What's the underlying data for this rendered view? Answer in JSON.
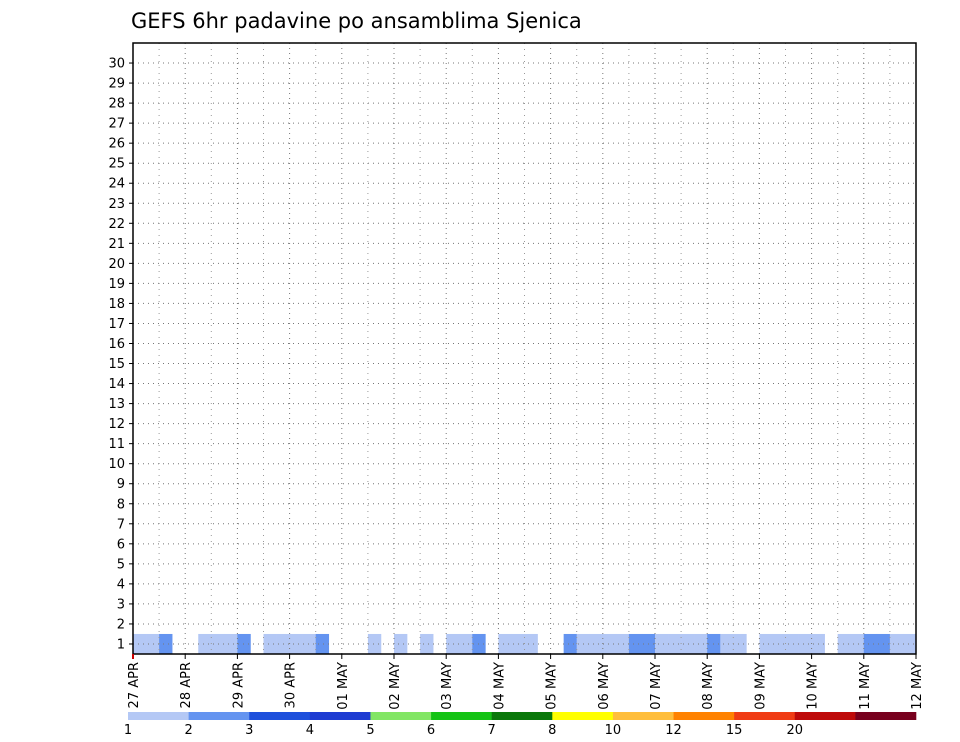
{
  "chart_data": {
    "type": "heatmap",
    "title": "GEFS 6hr padavine po ansamblima Sjenica",
    "y_ticks": [
      "1",
      "2",
      "3",
      "4",
      "5",
      "6",
      "7",
      "8",
      "9",
      "10",
      "11",
      "12",
      "13",
      "14",
      "15",
      "16",
      "17",
      "18",
      "19",
      "20",
      "21",
      "22",
      "23",
      "24",
      "25",
      "26",
      "27",
      "28",
      "29",
      "30"
    ],
    "x_ticks": [
      "27 APR",
      "28 APR",
      "29 APR",
      "30 APR",
      "01 MAY",
      "02 MAY",
      "03 MAY",
      "04 MAY",
      "05 MAY",
      "06 MAY",
      "07 MAY",
      "08 MAY",
      "09 MAY",
      "10 MAY",
      "11 MAY",
      "12 MAY"
    ],
    "legend": {
      "colors": [
        "#b4c8f5",
        "#6494f0",
        "#1e50dc",
        "#1e3cd2",
        "#82e664",
        "#14c314",
        "#0a780a",
        "#ffff00",
        "#ffbe3c",
        "#ff8200",
        "#f03c14",
        "#be0a0a",
        "#78001e"
      ],
      "labels": [
        "1",
        "2",
        "3",
        "4",
        "5",
        "6",
        "7",
        "8",
        "10",
        "12",
        "15",
        "20",
        ""
      ]
    },
    "grid": true,
    "steps_per_day": 4,
    "cells": [
      [
        1,
        0,
        1
      ],
      [
        1,
        1,
        1
      ],
      [
        1,
        2,
        2
      ],
      [
        1,
        5,
        1
      ],
      [
        1,
        6,
        1
      ],
      [
        1,
        7,
        1
      ],
      [
        1,
        8,
        2
      ],
      [
        1,
        10,
        1
      ],
      [
        1,
        11,
        1
      ],
      [
        1,
        12,
        1
      ],
      [
        1,
        13,
        1
      ],
      [
        1,
        14,
        2
      ],
      [
        1,
        18,
        1
      ],
      [
        1,
        20,
        1
      ],
      [
        1,
        22,
        1
      ],
      [
        1,
        24,
        1
      ],
      [
        1,
        25,
        1
      ],
      [
        1,
        26,
        2
      ],
      [
        1,
        28,
        1
      ],
      [
        1,
        29,
        1
      ],
      [
        1,
        30,
        1
      ],
      [
        1,
        33,
        2
      ],
      [
        1,
        34,
        1
      ],
      [
        1,
        35,
        1
      ],
      [
        1,
        36,
        1
      ],
      [
        1,
        37,
        1
      ],
      [
        1,
        38,
        2
      ],
      [
        1,
        39,
        2
      ],
      [
        1,
        40,
        1
      ],
      [
        1,
        41,
        1
      ],
      [
        1,
        42,
        1
      ],
      [
        1,
        43,
        1
      ],
      [
        1,
        44,
        2
      ],
      [
        1,
        45,
        1
      ],
      [
        1,
        46,
        1
      ],
      [
        1,
        48,
        1
      ],
      [
        1,
        49,
        1
      ],
      [
        1,
        50,
        1
      ],
      [
        1,
        51,
        1
      ],
      [
        1,
        52,
        1
      ],
      [
        1,
        54,
        1
      ],
      [
        1,
        55,
        1
      ],
      [
        1,
        56,
        2
      ],
      [
        1,
        57,
        2
      ],
      [
        1,
        58,
        1
      ],
      [
        1,
        59,
        1
      ]
    ]
  }
}
